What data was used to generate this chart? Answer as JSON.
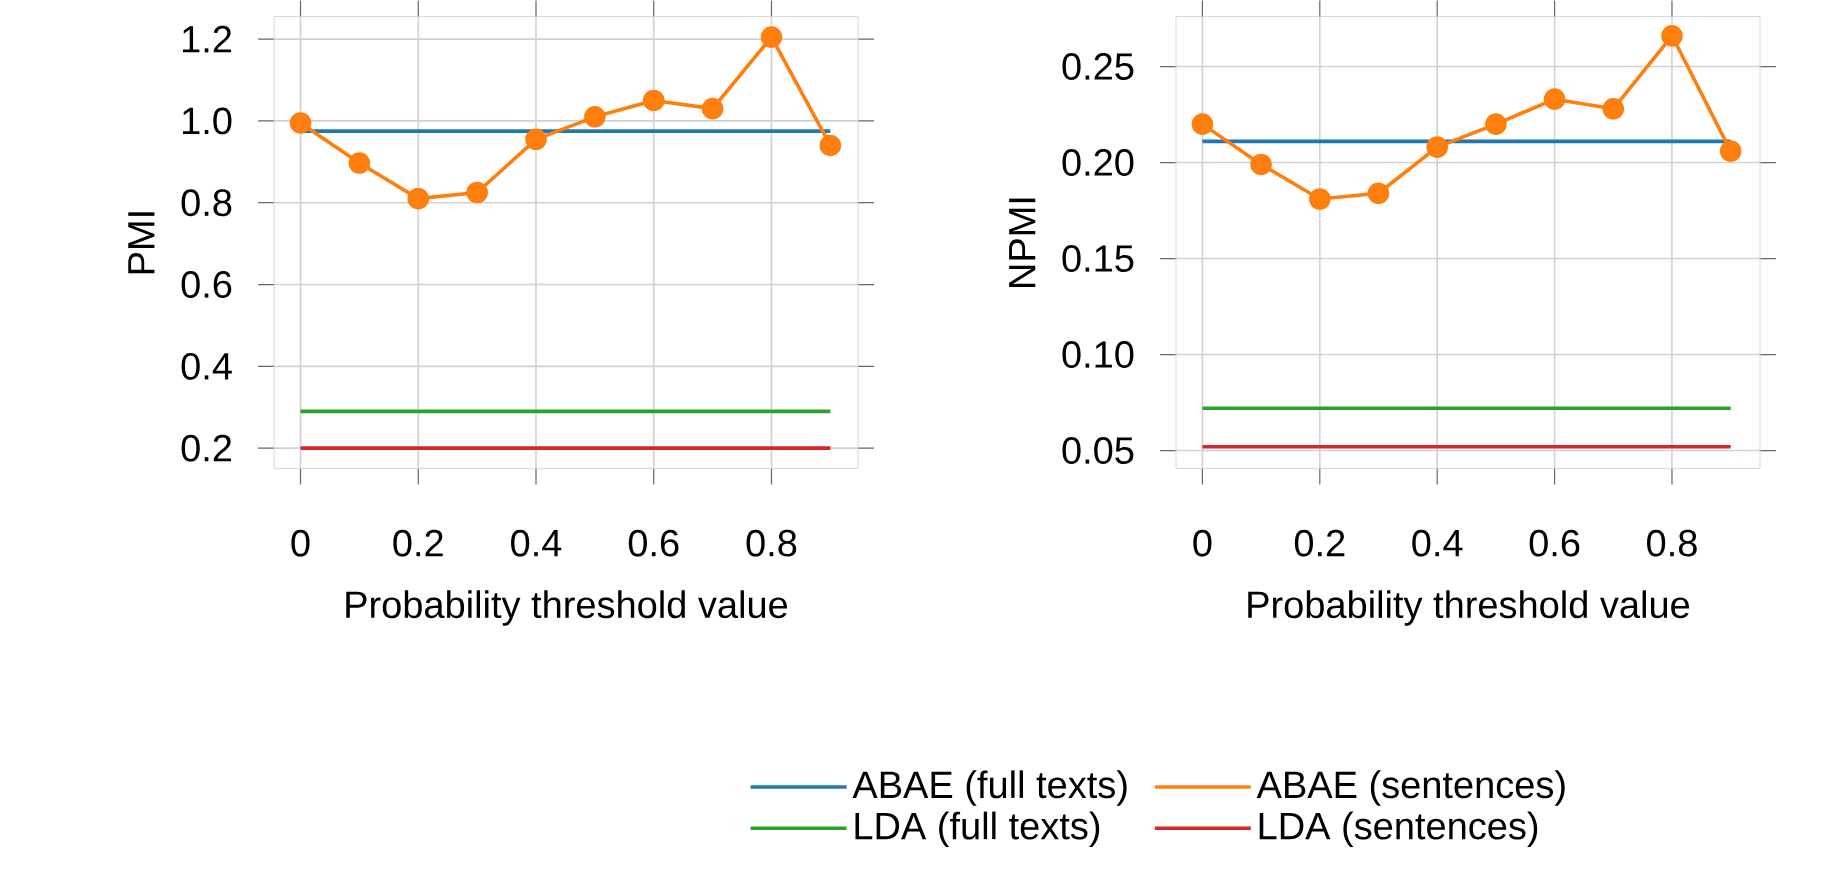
{
  "chart_data": [
    {
      "type": "line",
      "xlabel": "Probability threshold value",
      "ylabel": "PMI",
      "grid": true,
      "legend": "bottom",
      "xlim": [
        -0.045,
        0.947
      ],
      "ylim": [
        0.15,
        1.255
      ],
      "xticks": [
        0,
        0.2,
        0.4,
        0.6,
        0.8
      ],
      "yticks": [
        0.2,
        0.4,
        0.6,
        0.8,
        {
          "value": 1.0,
          "label": "1.0"
        },
        1.2
      ],
      "series": [
        {
          "name": "ABAE (full texts)",
          "color": "#1f77b4",
          "marker": "none",
          "x": [
            0,
            0.9
          ],
          "values": [
            0.975,
            0.975
          ]
        },
        {
          "name": "ABAE (sentences)",
          "color": "#ff7f0e",
          "marker": "circle",
          "x": [
            0,
            0.1,
            0.2,
            0.3,
            0.4,
            0.5,
            0.6,
            0.7,
            0.8,
            0.9
          ],
          "values": [
            0.995,
            0.897,
            0.81,
            0.825,
            0.955,
            1.01,
            1.05,
            1.03,
            1.205,
            0.94
          ]
        },
        {
          "name": "LDA (full texts)",
          "color": "#2ca02c",
          "marker": "none",
          "x": [
            0,
            0.9
          ],
          "values": [
            0.29,
            0.29
          ]
        },
        {
          "name": "LDA (sentences)",
          "color": "#d62728",
          "marker": "none",
          "x": [
            0,
            0.9
          ],
          "values": [
            0.2,
            0.2
          ]
        }
      ]
    },
    {
      "type": "line",
      "xlabel": "Probability threshold value",
      "ylabel": "NPMI",
      "grid": true,
      "xlim": [
        -0.045,
        0.95
      ],
      "ylim": [
        0.0406,
        0.276
      ],
      "xticks": [
        0,
        0.2,
        0.4,
        0.6,
        0.8
      ],
      "yticks": [
        {
          "value": 0.05,
          "label": "0.05"
        },
        {
          "value": 0.1,
          "label": "0.10"
        },
        0.15,
        {
          "value": 0.2,
          "label": "0.20"
        },
        0.25
      ],
      "series": [
        {
          "color": "#1f77b4",
          "marker": "none",
          "x": [
            0,
            0.9
          ],
          "values": [
            0.211,
            0.211
          ]
        },
        {
          "color": "#ff7f0e",
          "marker": "circle",
          "x": [
            0,
            0.1,
            0.2,
            0.3,
            0.4,
            0.5,
            0.6,
            0.7,
            0.8,
            0.9
          ],
          "values": [
            0.22,
            0.199,
            0.181,
            0.184,
            0.208,
            0.22,
            0.233,
            0.228,
            0.266,
            0.206
          ]
        },
        {
          "color": "#2ca02c",
          "marker": "none",
          "x": [
            0,
            0.9
          ],
          "values": [
            0.072,
            0.072
          ]
        },
        {
          "color": "#d62728",
          "marker": "none",
          "x": [
            0,
            0.9
          ],
          "values": [
            0.052,
            0.052
          ]
        }
      ]
    }
  ]
}
